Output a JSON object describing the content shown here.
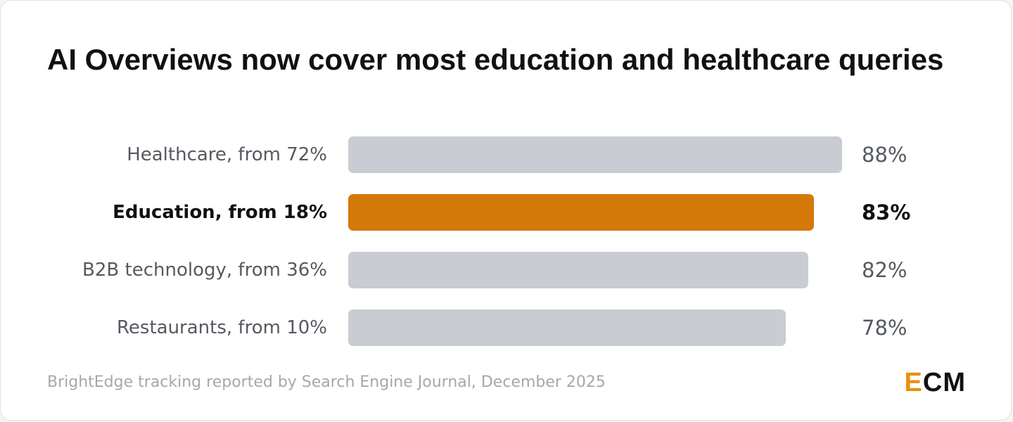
{
  "title": "AI Overviews now cover most education and healthcare queries",
  "source": "BrightEdge tracking reported by Search Engine Journal, December 2025",
  "logo": {
    "first_letter": "E",
    "rest": "CM"
  },
  "colors": {
    "bar_default": "#c9ccd2",
    "bar_highlight": "#d4780a",
    "logo_accent": "#e8900c"
  },
  "chart_data": {
    "type": "bar",
    "orientation": "horizontal",
    "categories": [
      "Healthcare, from 72%",
      "Education, from 18%",
      "B2B technology, from 36%",
      "Restaurants, from 10%"
    ],
    "values": [
      88,
      83,
      82,
      78
    ],
    "value_labels": [
      "88%",
      "83%",
      "82%",
      "78%"
    ],
    "highlighted": [
      false,
      true,
      false,
      false
    ],
    "unit": "%",
    "xlim": [
      0,
      88
    ],
    "title": "AI Overviews now cover most education and healthcare queries",
    "xlabel": "",
    "ylabel": "",
    "grid": false,
    "legend": "none"
  }
}
